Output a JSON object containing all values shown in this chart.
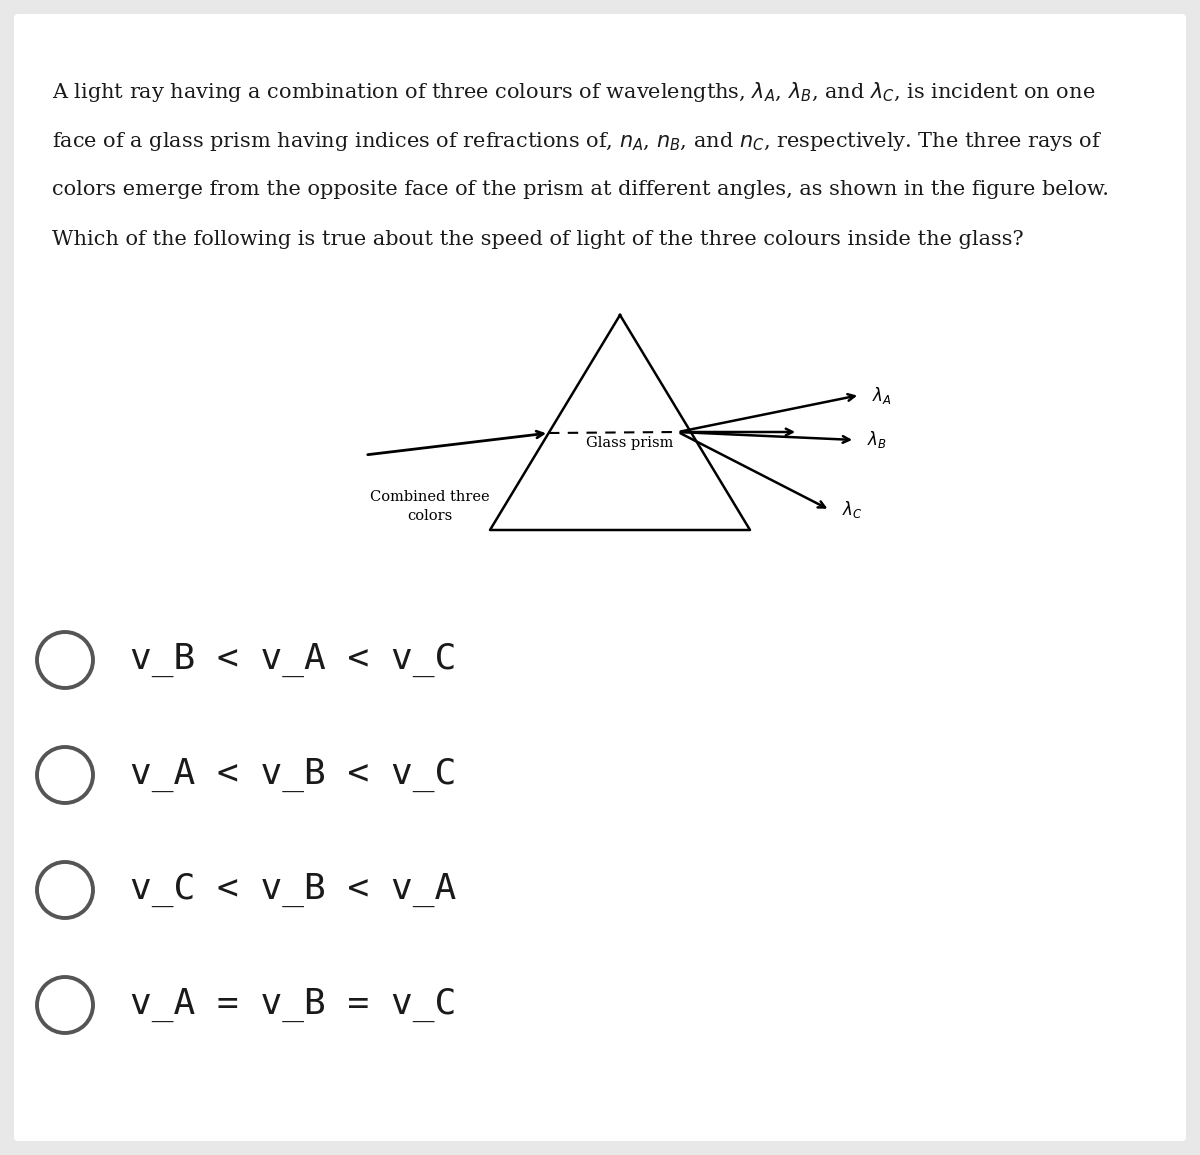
{
  "background_color": "#e8e8e8",
  "card_color": "#ffffff",
  "question_font_size": 15.0,
  "option_font_size": 26,
  "text_color": "#1a1a1a",
  "circle_color": "#555555",
  "prism_label": "Glass prism",
  "combined_label_line1": "Combined three",
  "combined_label_line2": "colors",
  "options": [
    "v_B < v_A < v_C",
    "v_A < v_B < v_C",
    "v_C < v_B < v_A",
    "v_A = v_B = v_C"
  ],
  "q_lines": [
    "A light ray having a combination of three colours of wavelengths, λ$_A$, λ$_B$, and λ$_C$, is incident on one",
    "face of a glass prism having indices of refractions of, $n_A$, $n_B$, and $n_C$, respectively. The three rays of",
    "colors emerge from the opposite face of the prism at different angles, as shown in the figure below.",
    "Which of the following is true about the speed of light of the three colours inside the glass?"
  ]
}
